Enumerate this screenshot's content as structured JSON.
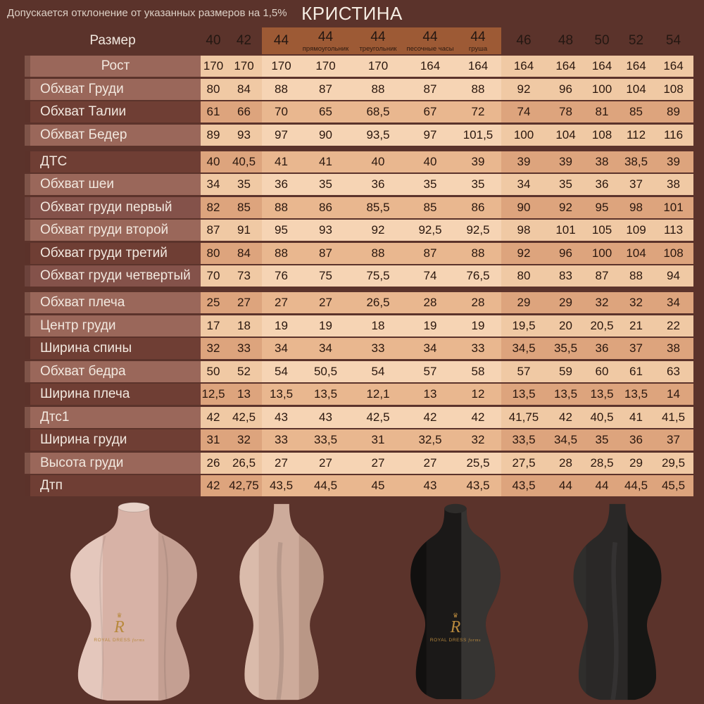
{
  "page": {
    "disclaimer": "Допускается отклонение от указанных размеров на 1,5%",
    "title": "КРИСТИНА"
  },
  "colors": {
    "background": "#5b332b",
    "header_band": "#9d5a35",
    "row_label_light": "#9a675a",
    "row_label_dark": "#6f3e34",
    "cell_light": "#f0c9a4",
    "cell_dark": "#dda47d",
    "brand_gold": "#b8893d"
  },
  "icons": {
    "crown": "♛"
  },
  "table": {
    "size_header_label": "Размер",
    "columns": [
      {
        "size": "40"
      },
      {
        "size": "42"
      },
      {
        "size": "44"
      },
      {
        "size": "44",
        "sub": "прямоугольник"
      },
      {
        "size": "44",
        "sub": "треугольник"
      },
      {
        "size": "44",
        "sub": "песочные часы"
      },
      {
        "size": "44",
        "sub": "груша"
      },
      {
        "size": "46"
      },
      {
        "size": "48"
      },
      {
        "size": "50"
      },
      {
        "size": "52"
      },
      {
        "size": "54"
      }
    ],
    "band_columns": [
      2,
      3,
      4,
      5,
      6
    ],
    "rows": [
      {
        "label": "Рост",
        "center": true,
        "label_shade": "light",
        "shade": "light",
        "gap_after": false,
        "values": [
          "170",
          "170",
          "170",
          "170",
          "170",
          "164",
          "164",
          "164",
          "164",
          "164",
          "164",
          "164"
        ]
      },
      {
        "label": "Обхват Груди",
        "label_shade": "light",
        "shade": "light",
        "gap_after": false,
        "values": [
          "80",
          "84",
          "88",
          "87",
          "88",
          "87",
          "88",
          "92",
          "96",
          "100",
          "104",
          "108"
        ]
      },
      {
        "label": "Обхват Талии",
        "label_shade": "dark",
        "shade": "dark",
        "gap_after": false,
        "values": [
          "61",
          "66",
          "70",
          "65",
          "68,5",
          "67",
          "72",
          "74",
          "78",
          "81",
          "85",
          "89"
        ]
      },
      {
        "label": "Обхват Бедер",
        "label_shade": "light",
        "shade": "light",
        "gap_after": true,
        "values": [
          "89",
          "93",
          "97",
          "90",
          "93,5",
          "97",
          "101,5",
          "100",
          "104",
          "108",
          "112",
          "116"
        ]
      },
      {
        "label": "ДТС",
        "label_shade": "dark",
        "shade": "dark",
        "gap_after": false,
        "values": [
          "40",
          "40,5",
          "41",
          "41",
          "40",
          "40",
          "39",
          "39",
          "39",
          "38",
          "38,5",
          "39"
        ]
      },
      {
        "label": "Обхват шеи",
        "label_shade": "light",
        "shade": "light",
        "gap_after": false,
        "values": [
          "34",
          "35",
          "36",
          "35",
          "36",
          "35",
          "35",
          "34",
          "35",
          "36",
          "37",
          "38"
        ]
      },
      {
        "label": "Обхват груди первый",
        "label_shade": "mid",
        "shade": "dark",
        "gap_after": false,
        "values": [
          "82",
          "85",
          "88",
          "86",
          "85,5",
          "85",
          "86",
          "90",
          "92",
          "95",
          "98",
          "101"
        ]
      },
      {
        "label": "Обхват груди второй",
        "label_shade": "light",
        "shade": "light",
        "gap_after": false,
        "values": [
          "87",
          "91",
          "95",
          "93",
          "92",
          "92,5",
          "92,5",
          "98",
          "101",
          "105",
          "109",
          "113"
        ]
      },
      {
        "label": "Обхват груди третий",
        "label_shade": "dark",
        "shade": "dark",
        "gap_after": false,
        "values": [
          "80",
          "84",
          "88",
          "87",
          "88",
          "87",
          "88",
          "92",
          "96",
          "100",
          "104",
          "108"
        ]
      },
      {
        "label": "Обхват груди четвертый",
        "label_shade": "mid",
        "shade": "light",
        "gap_after": true,
        "values": [
          "70",
          "73",
          "76",
          "75",
          "75,5",
          "74",
          "76,5",
          "80",
          "83",
          "87",
          "88",
          "94"
        ]
      },
      {
        "label": "Обхват плеча",
        "label_shade": "light",
        "shade": "dark",
        "gap_after": false,
        "values": [
          "25",
          "27",
          "27",
          "27",
          "26,5",
          "28",
          "28",
          "29",
          "29",
          "32",
          "32",
          "34"
        ]
      },
      {
        "label": "Центр груди",
        "label_shade": "light",
        "shade": "light",
        "gap_after": false,
        "values": [
          "17",
          "18",
          "19",
          "19",
          "18",
          "19",
          "19",
          "19,5",
          "20",
          "20,5",
          "21",
          "22"
        ]
      },
      {
        "label": "Ширина спины",
        "label_shade": "dark",
        "shade": "dark",
        "gap_after": false,
        "values": [
          "32",
          "33",
          "34",
          "34",
          "33",
          "34",
          "33",
          "34,5",
          "35,5",
          "36",
          "37",
          "38"
        ]
      },
      {
        "label": "Обхват бедра",
        "label_shade": "light",
        "shade": "light",
        "gap_after": false,
        "values": [
          "50",
          "52",
          "54",
          "50,5",
          "54",
          "57",
          "58",
          "57",
          "59",
          "60",
          "61",
          "63"
        ]
      },
      {
        "label": "Ширина плеча",
        "label_shade": "dark",
        "shade": "dark",
        "gap_after": false,
        "values": [
          "12,5",
          "13",
          "13,5",
          "13,5",
          "12,1",
          "13",
          "12",
          "13,5",
          "13,5",
          "13,5",
          "13,5",
          "14"
        ]
      },
      {
        "label": "Дтс1",
        "label_shade": "light",
        "shade": "light",
        "gap_after": false,
        "values": [
          "42",
          "42,5",
          "43",
          "43",
          "42,5",
          "42",
          "42",
          "41,75",
          "42",
          "40,5",
          "41",
          "41,5"
        ]
      },
      {
        "label": "Ширина груди",
        "label_shade": "dark",
        "shade": "dark",
        "gap_after": false,
        "values": [
          "31",
          "32",
          "33",
          "33,5",
          "31",
          "32,5",
          "32",
          "33,5",
          "34,5",
          "35",
          "36",
          "37"
        ]
      },
      {
        "label": "Высота груди",
        "label_shade": "light",
        "shade": "light",
        "gap_after": false,
        "values": [
          "26",
          "26,5",
          "27",
          "27",
          "27",
          "27",
          "25,5",
          "27,5",
          "28",
          "28,5",
          "29",
          "29,5"
        ]
      },
      {
        "label": "Дтп",
        "label_shade": "dark",
        "shade": "dark",
        "gap_after": false,
        "values": [
          "42",
          "42,75",
          "43,5",
          "44,5",
          "45",
          "43",
          "43,5",
          "43,5",
          "44",
          "44",
          "44,5",
          "45,5"
        ]
      }
    ]
  },
  "mannequins": {
    "monogram": "R",
    "brand_caps": "ROYAL DRESS",
    "brand_script": "forms"
  }
}
